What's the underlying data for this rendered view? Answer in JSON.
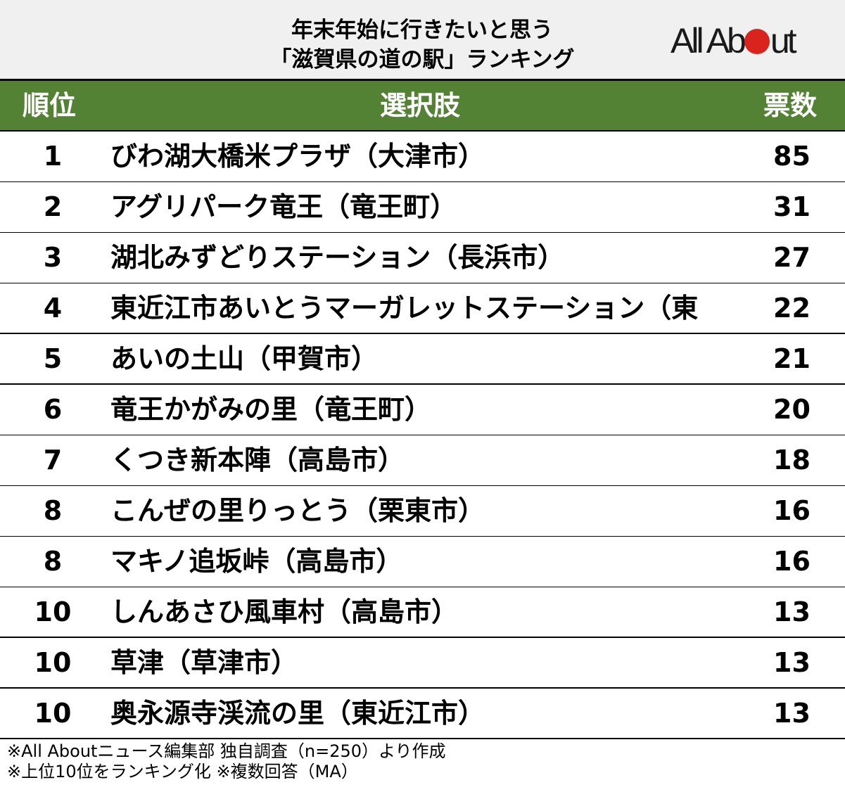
{
  "title": {
    "line1": "年末年始に行きたいと思う",
    "line2": "「滋賀県の道の駅」ランキング"
  },
  "logo": {
    "text_before": "All Ab",
    "text_after": "ut",
    "dot_color": "#d9231d"
  },
  "colors": {
    "header_bg": "#548235",
    "title_bg": "#f0f0f0",
    "header_text": "#ffffff"
  },
  "table": {
    "headers": {
      "rank": "順位",
      "name": "選択肢",
      "votes": "票数"
    },
    "rows": [
      {
        "rank": "1",
        "name": "びわ湖大橋米プラザ（大津市）",
        "votes": "85"
      },
      {
        "rank": "2",
        "name": "アグリパーク竜王（竜王町）",
        "votes": "31"
      },
      {
        "rank": "3",
        "name": "湖北みずどりステーション（長浜市）",
        "votes": "27"
      },
      {
        "rank": "4",
        "name": "東近江市あいとうマーガレットステーション（東",
        "votes": "22"
      },
      {
        "rank": "5",
        "name": "あいの土山（甲賀市）",
        "votes": "21"
      },
      {
        "rank": "6",
        "name": "竜王かがみの里（竜王町）",
        "votes": "20"
      },
      {
        "rank": "7",
        "name": "くつき新本陣（高島市）",
        "votes": "18"
      },
      {
        "rank": "8",
        "name": "こんぜの里りっとう（栗東市）",
        "votes": "16"
      },
      {
        "rank": "8",
        "name": "マキノ追坂峠（高島市）",
        "votes": "16"
      },
      {
        "rank": "10",
        "name": "しんあさひ風車村（高島市）",
        "votes": "13"
      },
      {
        "rank": "10",
        "name": "草津（草津市）",
        "votes": "13"
      },
      {
        "rank": "10",
        "name": "奥永源寺渓流の里（東近江市）",
        "votes": "13"
      }
    ]
  },
  "footer": {
    "note1": "※All Aboutニュース編集部 独自調査（n=250）より作成",
    "note2": "※上位10位をランキング化 ※複数回答（MA）"
  },
  "chart_data": {
    "type": "table",
    "title": "年末年始に行きたいと思う「滋賀県の道の駅」ランキング",
    "columns": [
      "順位",
      "選択肢",
      "票数"
    ],
    "categories": [
      "びわ湖大橋米プラザ（大津市）",
      "アグリパーク竜王（竜王町）",
      "湖北みずどりステーション（長浜市）",
      "東近江市あいとうマーガレットステーション（東",
      "あいの土山（甲賀市）",
      "竜王かがみの里（竜王町）",
      "くつき新本陣（高島市）",
      "こんぜの里りっとう（栗東市）",
      "マキノ追坂峠（高島市）",
      "しんあさひ風車村（高島市）",
      "草津（草津市）",
      "奥永源寺渓流の里（東近江市）"
    ],
    "ranks": [
      1,
      2,
      3,
      4,
      5,
      6,
      7,
      8,
      8,
      10,
      10,
      10
    ],
    "values": [
      85,
      31,
      27,
      22,
      21,
      20,
      18,
      16,
      16,
      13,
      13,
      13
    ],
    "notes": [
      "※All Aboutニュース編集部 独自調査（n=250）より作成",
      "※上位10位をランキング化 ※複数回答（MA）"
    ]
  }
}
